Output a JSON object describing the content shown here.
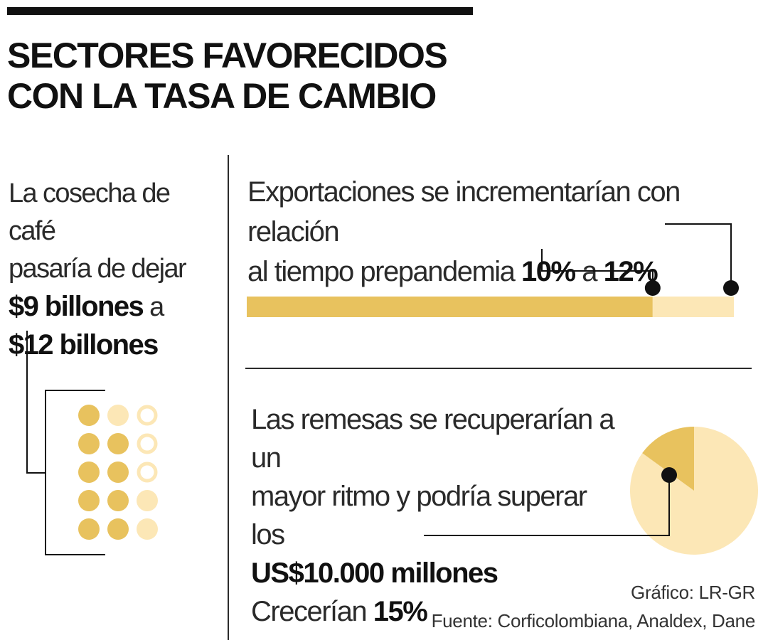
{
  "title": "SECTORES FAVORECIDOS CON LA TASA DE CAMBIO",
  "coffee": {
    "line1": "La cosecha de café",
    "line2": "pasaría de dejar",
    "from_value": "$9 billones",
    "connector": "a",
    "to_value": "$12 billones"
  },
  "exports": {
    "line1": "Exportaciones se incrementarían con relación",
    "line2": "al tiempo prepandemia",
    "from_pct": "10%",
    "connector": "a",
    "to_pct": "12%"
  },
  "remittances": {
    "line1": "Las remesas se recuperarían a un",
    "line2": "mayor ritmo y podría superar los",
    "amount": "US$10.000 millones",
    "growth_label": "Crecerían",
    "growth_pct": "15%"
  },
  "credits": {
    "graphic": "Gráfico: LR-GR",
    "source": "Fuente: Corficolombiana, Analdex, Dane"
  },
  "colors": {
    "gold": "#E8C25E",
    "light_gold": "#FCE7B6",
    "ink": "#111111"
  },
  "chart_data": [
    {
      "type": "bar",
      "description_key": "exports",
      "categories": [
        "10%",
        "12%"
      ],
      "values": [
        10,
        12
      ],
      "max": 12
    },
    {
      "type": "pie",
      "description_key": "remittances",
      "values": [
        15,
        85
      ],
      "highlight_index": 0
    },
    {
      "type": "dot-matrix",
      "description_key": "coffee",
      "values": [
        9,
        12
      ],
      "total": 15
    }
  ]
}
